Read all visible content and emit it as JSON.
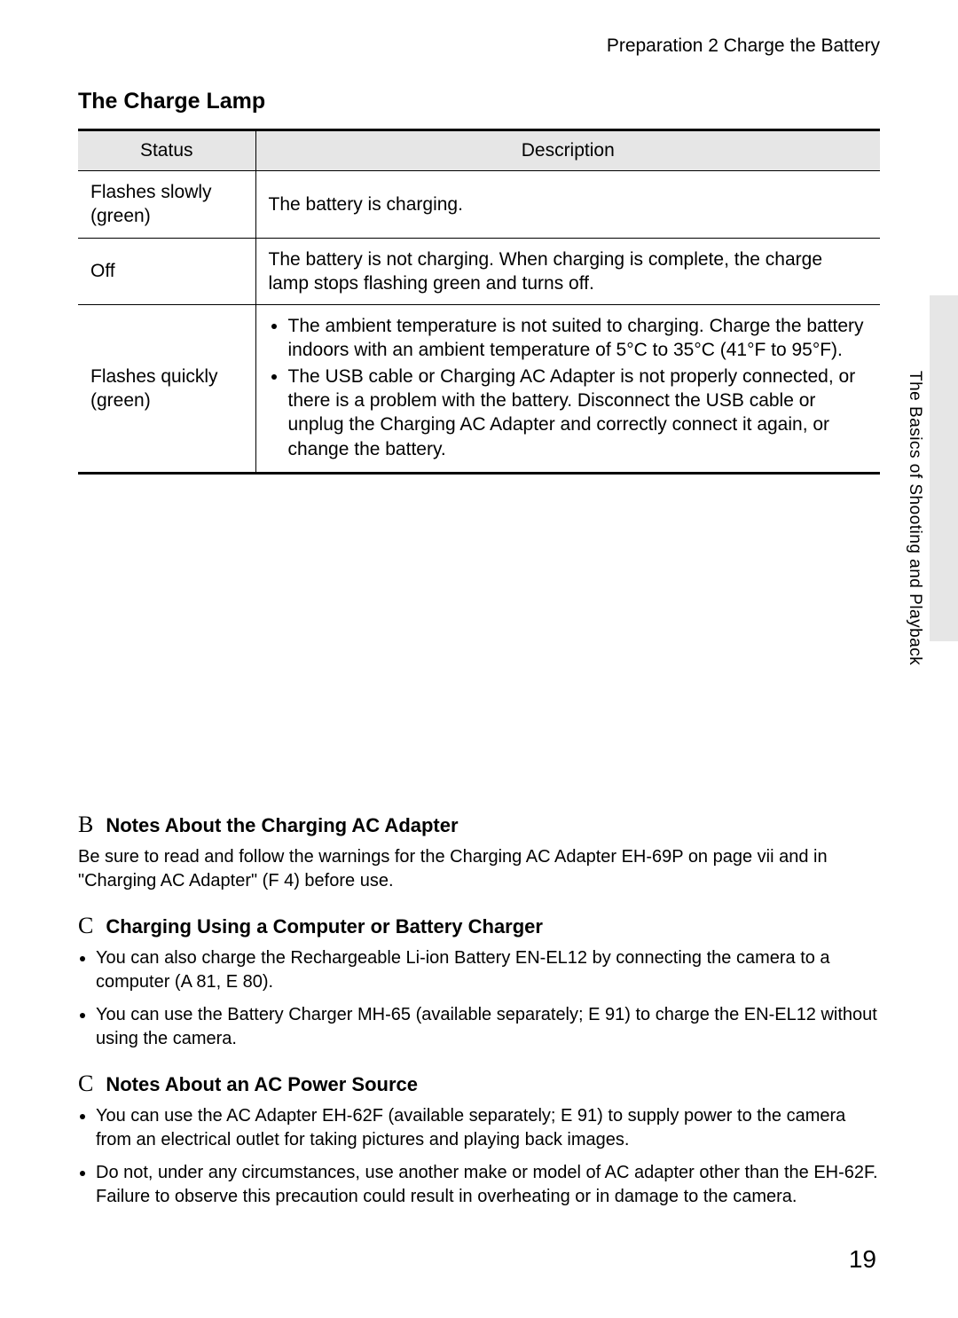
{
  "breadcrumb": "Preparation 2 Charge the Battery",
  "section_title": "The Charge Lamp",
  "side_tab_text": "The Basics of Shooting and Playback",
  "page_number": "19",
  "colors": {
    "background": "#ffffff",
    "text": "#000000",
    "table_header_bg": "#e6e6e6",
    "side_tab_bg": "#e6e6e6",
    "border": "#000000"
  },
  "table": {
    "columns": [
      "Status",
      "Description"
    ],
    "rows": [
      {
        "status": "Flashes slowly (green)",
        "description": "The battery is charging."
      },
      {
        "status": "Off",
        "description": "The battery is not charging. When charging is complete, the charge lamp stops flashing green and turns off."
      },
      {
        "status": "Flashes quickly (green)",
        "bullets": [
          "The ambient temperature is not suited to charging. Charge the battery indoors with an ambient temperature of 5°C to 35°C (41°F to 95°F).",
          "The USB cable or Charging AC Adapter is not properly connected, or there is a problem with the battery. Disconnect the USB cable or unplug the Charging AC Adapter and correctly connect it again, or change the battery."
        ]
      }
    ]
  },
  "notes": [
    {
      "icon": "B",
      "heading": "Notes About the Charging AC Adapter",
      "body": "Be sure to read and follow the warnings for the Charging AC Adapter EH-69P on page vii and in \"Charging AC Adapter\" (F 4) before use."
    },
    {
      "icon": "C",
      "heading": "Charging Using a Computer or Battery Charger",
      "bullets": [
        "You can also charge the Rechargeable Li-ion Battery EN-EL12 by connecting the camera to a computer (A 81, E 80).",
        "You can use the Battery Charger MH-65 (available separately; E 91) to charge the EN-EL12 without using the camera."
      ]
    },
    {
      "icon": "C",
      "heading": "Notes About an AC Power Source",
      "bullets": [
        "You can use the AC Adapter EH-62F (available separately; E 91) to supply power to the camera from an electrical outlet for taking pictures and playing back images.",
        "Do not, under any circumstances, use another make or model of AC adapter other than the EH-62F. Failure to observe this precaution could result in overheating or in damage to the camera."
      ]
    }
  ]
}
